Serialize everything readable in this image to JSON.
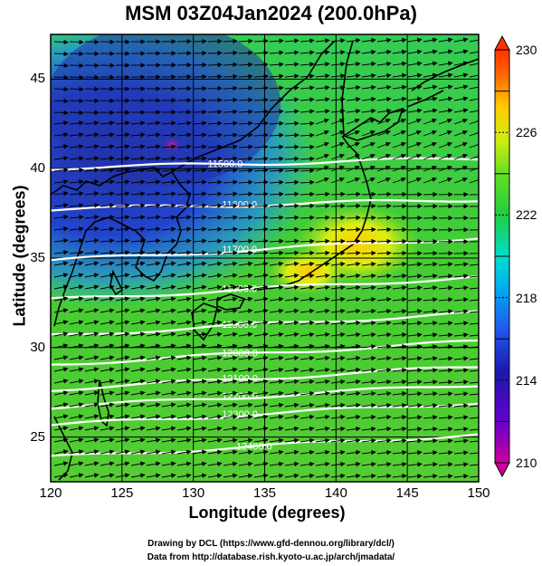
{
  "title": "MSM 03Z04Jan2024 (200.0hPa)",
  "axes": {
    "xlabel": "Longitude (degrees)",
    "ylabel": "Latitude  (degrees)",
    "xticks": [
      "120",
      "125",
      "130",
      "135",
      "140",
      "145",
      "150"
    ],
    "yticks": [
      "45",
      "40",
      "35",
      "30",
      "25"
    ],
    "xlim": [
      120,
      150
    ],
    "ylim": [
      22.5,
      47.5
    ]
  },
  "colorbar": {
    "ticks": [
      "230",
      "226",
      "222",
      "218",
      "214",
      "210"
    ],
    "range": [
      210,
      230
    ],
    "colors": [
      "#cc0099",
      "#6600cc",
      "#1a1aaa",
      "#2255ee",
      "#00aaee",
      "#00ddcc",
      "#22cc44",
      "#66dd22",
      "#ccee11",
      "#ffcc00",
      "#ff6600",
      "#ff3300"
    ]
  },
  "contours": [
    {
      "label": "11500.0",
      "lon": 131,
      "lat": 40.3
    },
    {
      "label": "11600.0",
      "lon": 132,
      "lat": 38.0
    },
    {
      "label": "11700.0",
      "lon": 132,
      "lat": 35.5
    },
    {
      "label": "11800.0",
      "lon": 132,
      "lat": 33.3
    },
    {
      "label": "11900.0",
      "lon": 132,
      "lat": 31.3
    },
    {
      "label": "12000.0",
      "lon": 132,
      "lat": 29.7
    },
    {
      "label": "12100.0",
      "lon": 132,
      "lat": 28.3
    },
    {
      "label": "12200.0",
      "lon": 132,
      "lat": 27.3
    },
    {
      "label": "12300.0",
      "lon": 132,
      "lat": 26.3
    },
    {
      "label": "12400.0",
      "lon": 133,
      "lat": 24.5
    }
  ],
  "credits": {
    "line1": "Drawing by DCL (https://www.gfd-dennou.org/library/dcl/)",
    "line2": "Data from http://database.rish.kyoto-u.ac.jp/arch/jmadata/"
  }
}
